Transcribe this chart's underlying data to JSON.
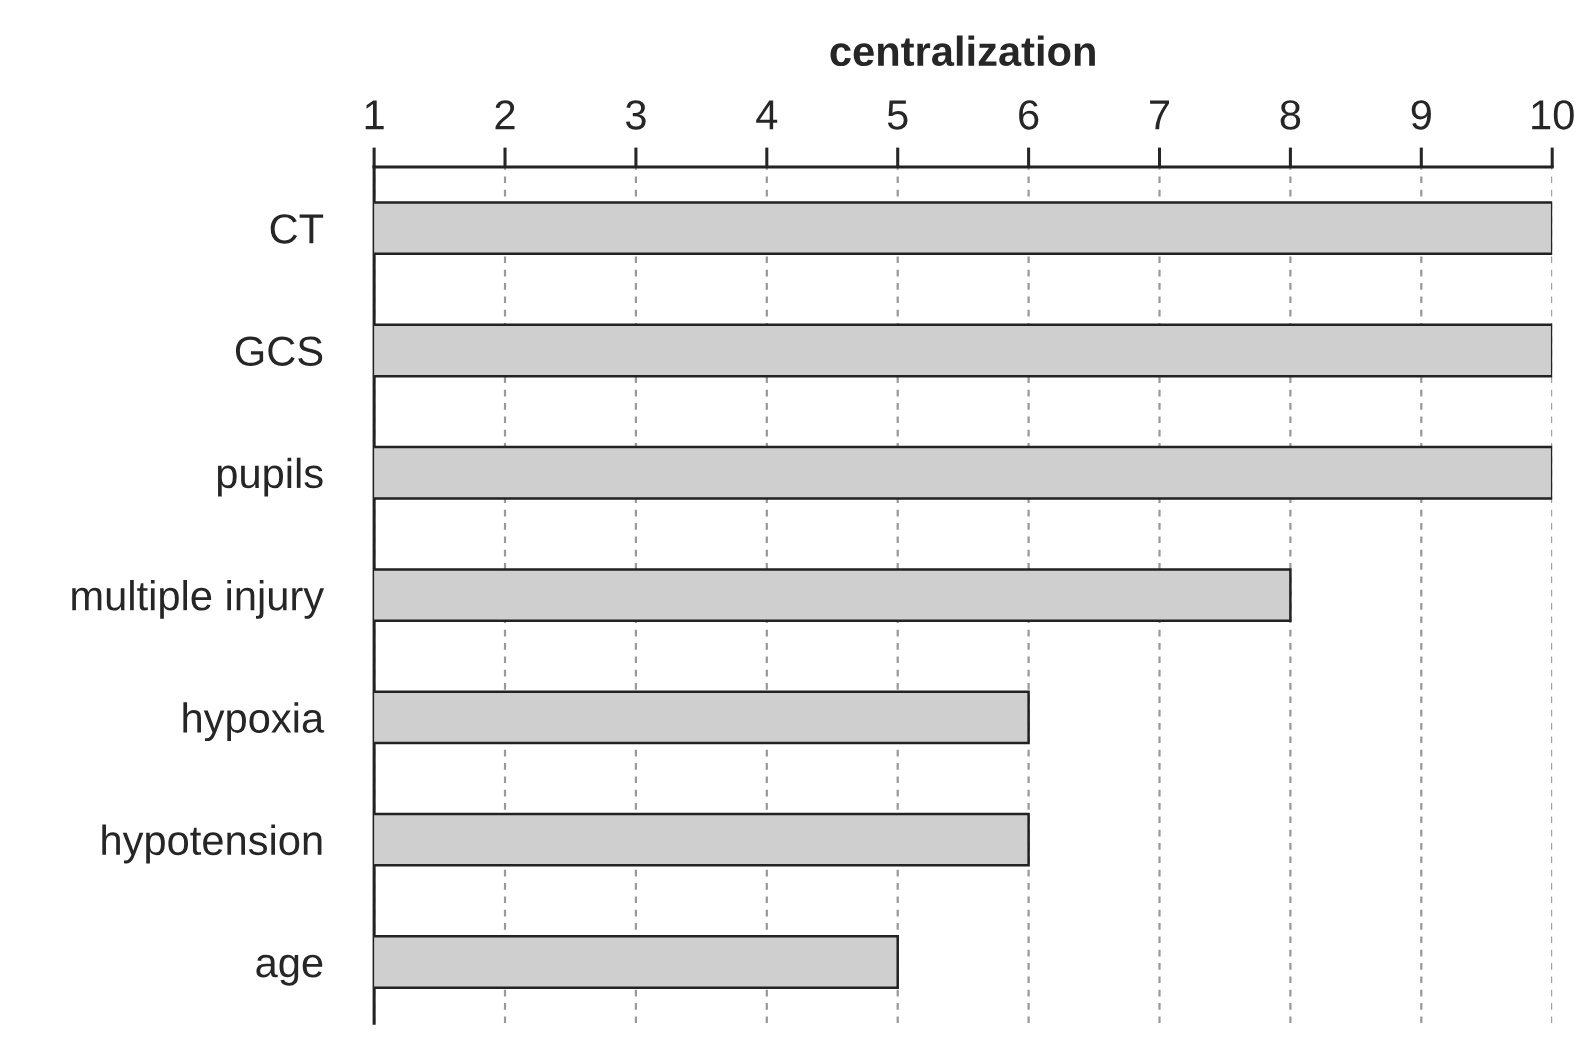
{
  "chart_data": {
    "type": "bar",
    "orientation": "horizontal",
    "xlabel": "centralization",
    "categories": [
      "CT",
      "GCS",
      "pupils",
      "multiple injury",
      "hypoxia",
      "hypotension",
      "age"
    ],
    "values": [
      10,
      10,
      10,
      8,
      6,
      6,
      5
    ],
    "color": "#cfcfcf",
    "xlim": [
      1,
      10
    ],
    "xticks": [
      1,
      2,
      3,
      4,
      5,
      6,
      7,
      8,
      9,
      10
    ],
    "grid": "x"
  }
}
